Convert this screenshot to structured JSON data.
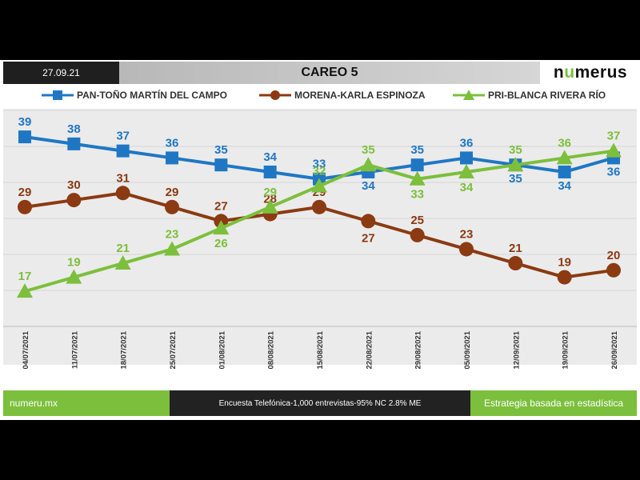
{
  "header": {
    "date": "27.09.21",
    "title": "CAREO 5"
  },
  "logo": {
    "text_pre": "n",
    "text_accent": "u",
    "text_post": "merus"
  },
  "footer": {
    "left": "numeru.mx",
    "middle": "Encuesta Telefónica-1,000 entrevistas-95% NC 2.8% ME",
    "right": "Estrategia basada en estadística"
  },
  "colors": {
    "pan": "#1f77c4",
    "morena": "#8b3a12",
    "pri": "#7cbf3c"
  },
  "chart_data": {
    "type": "line",
    "title": "CAREO 5",
    "categories": [
      "04/07/2021",
      "11/07/2021",
      "18/07/2021",
      "25/07/2021",
      "01/08/2021",
      "08/08/2021",
      "15/08/2021",
      "22/08/2021",
      "29/08/2021",
      "05/09/2021",
      "12/09/2021",
      "19/09/2021",
      "26/09/2021"
    ],
    "ylim": [
      12,
      43
    ],
    "grid": true,
    "legend_position": "top",
    "series": [
      {
        "name": "PAN-TOÑO MARTÍN DEL CAMPO",
        "key": "pan",
        "marker": "square",
        "values": [
          39,
          38,
          37,
          36,
          35,
          34,
          33,
          34,
          35,
          36,
          35,
          34,
          36
        ]
      },
      {
        "name": "MORENA-KARLA ESPINOZA",
        "key": "morena",
        "marker": "circle",
        "values": [
          29,
          30,
          31,
          29,
          27,
          28,
          29,
          27,
          25,
          23,
          21,
          19,
          20
        ]
      },
      {
        "name": "PRI-BLANCA RIVERA RÍO",
        "key": "pri",
        "marker": "triangle",
        "values": [
          17,
          19,
          21,
          23,
          26,
          29,
          32,
          35,
          33,
          34,
          35,
          36,
          37
        ]
      }
    ]
  }
}
